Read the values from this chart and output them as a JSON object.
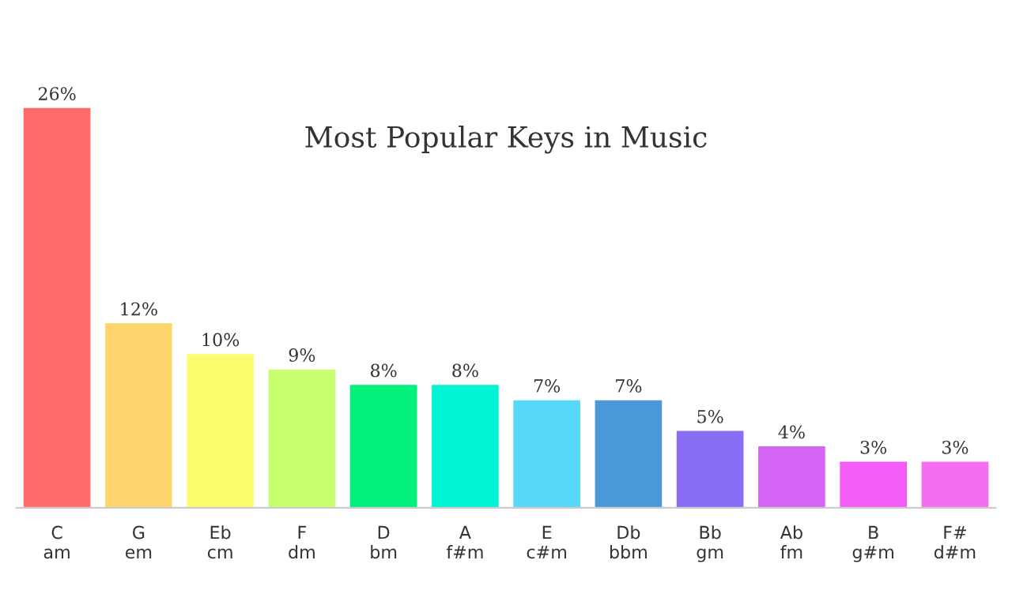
{
  "chart_data": {
    "type": "bar",
    "title": "Most Popular Keys in Music",
    "categories": [
      "C\nam",
      "G\nem",
      "Eb\ncm",
      "F\ndm",
      "D\nbm",
      "A\nf#m",
      "E\nc#m",
      "Db\nbbm",
      "Bb\ngm",
      "Ab\nfm",
      "B\ng#m",
      "F#\nd#m"
    ],
    "values": [
      26,
      12,
      10,
      9,
      8,
      8,
      7,
      7,
      5,
      4,
      3,
      3
    ],
    "value_labels": [
      "26%",
      "12%",
      "10%",
      "9%",
      "8%",
      "8%",
      "7%",
      "7%",
      "5%",
      "4%",
      "3%",
      "3%"
    ],
    "colors": [
      "#ff6b6b",
      "#ffd56e",
      "#fcfc6e",
      "#c8ff6e",
      "#00f07a",
      "#00f5d4",
      "#58d8f8",
      "#4a98d8",
      "#8a6df5",
      "#d465f5",
      "#f35cf5",
      "#f56ef0"
    ],
    "grid": false,
    "legend": false
  }
}
